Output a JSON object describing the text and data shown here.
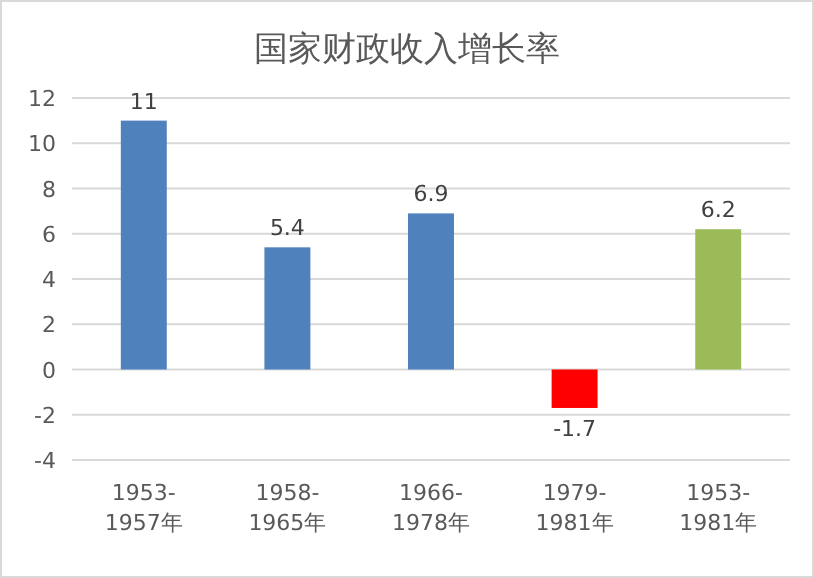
{
  "chart_data": {
    "type": "bar",
    "title": "国家财政收入增长率",
    "categories": [
      "1953-\n1957年",
      "1958-\n1965年",
      "1966-\n1978年",
      "1979-\n1981年",
      "1953-\n1981年"
    ],
    "values": [
      11,
      5.4,
      6.9,
      -1.7,
      6.2
    ],
    "colors": [
      "#4f81bd",
      "#4f81bd",
      "#4f81bd",
      "#ff0000",
      "#9bbb59"
    ],
    "ylim": [
      -4,
      12
    ],
    "yticks": [
      -4,
      -2,
      0,
      2,
      4,
      6,
      8,
      10,
      12
    ],
    "grid": "y",
    "data_labels": true
  }
}
